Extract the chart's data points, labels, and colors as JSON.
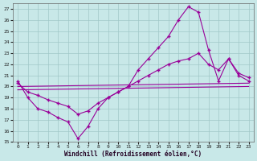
{
  "xlabel": "Windchill (Refroidissement éolien,°C)",
  "bg_color": "#c8e8e8",
  "grid_color": "#a0c8c8",
  "line_color": "#990099",
  "xlim": [
    -0.5,
    23.5
  ],
  "ylim": [
    15,
    27.5
  ],
  "ytick_vals": [
    15,
    16,
    17,
    18,
    19,
    20,
    21,
    22,
    23,
    24,
    25,
    26,
    27
  ],
  "xtick_vals": [
    0,
    1,
    2,
    3,
    4,
    5,
    6,
    7,
    8,
    9,
    10,
    11,
    12,
    13,
    14,
    15,
    16,
    17,
    18,
    19,
    20,
    21,
    22,
    23
  ],
  "line1_x": [
    0,
    1,
    2,
    3,
    4,
    5,
    6,
    7,
    8,
    9,
    10,
    11,
    12,
    13,
    14,
    15,
    16,
    17,
    18,
    19,
    20,
    21,
    22,
    23
  ],
  "line1_y": [
    20.5,
    19.0,
    18.0,
    17.7,
    17.2,
    16.8,
    15.3,
    16.4,
    18.0,
    19.0,
    19.5,
    20.0,
    21.5,
    22.5,
    23.5,
    24.5,
    26.0,
    27.2,
    26.7,
    23.3,
    20.5,
    22.5,
    21.0,
    20.5
  ],
  "line2_x": [
    0,
    1,
    2,
    3,
    4,
    5,
    6,
    7,
    8,
    9,
    10,
    11,
    12,
    13,
    14,
    15,
    16,
    17,
    18,
    19,
    20,
    21,
    22,
    23
  ],
  "line2_y": [
    20.3,
    19.5,
    19.2,
    18.8,
    18.5,
    18.2,
    17.5,
    17.8,
    18.5,
    19.0,
    19.5,
    20.0,
    20.5,
    21.0,
    21.5,
    22.0,
    22.3,
    22.5,
    23.0,
    22.0,
    21.5,
    22.5,
    21.2,
    20.8
  ],
  "line3_x": [
    0,
    23
  ],
  "line3_y": [
    20.0,
    20.3
  ],
  "line4_x": [
    0,
    23
  ],
  "line4_y": [
    19.7,
    20.0
  ]
}
